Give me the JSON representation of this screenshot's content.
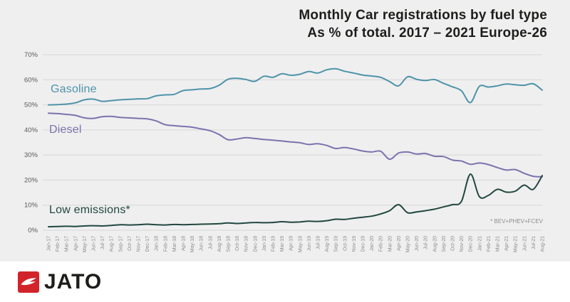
{
  "title": {
    "line1": "Monthly Car registrations by fuel type",
    "line2": "As % of total. 2017 – 2021 Europe-26"
  },
  "footnote": "* BEV+PHEV+FCEV",
  "brand": {
    "name": "JATO",
    "icon": "jato-arrow-icon",
    "red": "#d2232a",
    "text_color": "#1d1d1b"
  },
  "colors": {
    "background": "#efefef",
    "gridline": "#d7d7d7",
    "gasoline": "#4e93a9",
    "diesel": "#7a73ad",
    "low_emissions": "#20473e",
    "axis_text": "#8c8c8c"
  },
  "chart_data": {
    "type": "line",
    "title": "Monthly Car registrations by fuel type As % of total. 2017 – 2021 Europe-26",
    "grid": "horizontal",
    "ylim": [
      0,
      70
    ],
    "ytick_step": 10,
    "ytick_suffix": "%",
    "legend_position": "inline-labels",
    "x": [
      "Jan-17",
      "Feb-17",
      "Mar-17",
      "Apr-17",
      "May-17",
      "Jun-17",
      "Jul-17",
      "Aug-17",
      "Sep-17",
      "Oct-17",
      "Nov-17",
      "Dec-17",
      "Jan-18",
      "Feb-18",
      "Mar-18",
      "Apr-18",
      "May-18",
      "Jun-18",
      "Jul-18",
      "Aug-18",
      "Sep-18",
      "Oct-18",
      "Nov-18",
      "Dec-18",
      "Jan-19",
      "Feb-19",
      "Mar-19",
      "Apr-19",
      "May-19",
      "Jun-19",
      "Jul-19",
      "Aug-19",
      "Sep-19",
      "Oct-19",
      "Nov-19",
      "Dec-19",
      "Jan-20",
      "Feb-20",
      "Mar-20",
      "Apr-20",
      "May-20",
      "Jun-20",
      "Jul-20",
      "Aug-20",
      "Sep-20",
      "Oct-20",
      "Nov-20",
      "Dec-20",
      "Jan-21",
      "Feb-21",
      "Mar-21",
      "Apr-21",
      "May-21",
      "Jun-21",
      "Jul-21",
      "Aug-21"
    ],
    "series": [
      {
        "name": "Gasoline",
        "color": "#4e93a9",
        "values": [
          50.0,
          50.1,
          50.3,
          50.8,
          52.0,
          52.3,
          51.4,
          51.7,
          52.0,
          52.2,
          52.4,
          52.5,
          53.6,
          54.0,
          54.2,
          55.7,
          56.0,
          56.3,
          56.5,
          57.8,
          60.2,
          60.6,
          60.1,
          59.4,
          61.4,
          61.0,
          62.4,
          61.8,
          62.2,
          63.3,
          62.7,
          64.0,
          64.4,
          63.4,
          62.7,
          61.9,
          61.5,
          61.0,
          59.3,
          57.6,
          61.2,
          60.2,
          59.7,
          60.1,
          58.6,
          57.2,
          55.6,
          50.9,
          57.4,
          57.1,
          57.6,
          58.3,
          58.0,
          57.8,
          58.4,
          55.9
        ]
      },
      {
        "name": "Diesel",
        "color": "#7a73ad",
        "values": [
          46.7,
          46.5,
          46.2,
          45.8,
          44.8,
          44.6,
          45.3,
          45.4,
          45.0,
          44.8,
          44.6,
          44.4,
          43.6,
          42.1,
          41.7,
          41.4,
          41.1,
          40.4,
          39.7,
          38.2,
          36.1,
          36.4,
          36.9,
          36.6,
          36.2,
          35.9,
          35.6,
          35.2,
          34.9,
          34.2,
          34.5,
          33.8,
          32.6,
          33.0,
          32.4,
          31.6,
          31.2,
          31.5,
          28.3,
          30.8,
          31.2,
          30.4,
          30.6,
          29.5,
          29.4,
          28.0,
          27.6,
          26.3,
          26.8,
          26.2,
          25.0,
          24.0,
          24.2,
          22.7,
          21.5,
          21.3
        ]
      },
      {
        "name": "Low emissions*",
        "color": "#20473e",
        "values": [
          1.4,
          1.5,
          1.6,
          1.5,
          1.7,
          1.8,
          1.7,
          1.9,
          2.2,
          2.1,
          2.2,
          2.4,
          2.2,
          2.1,
          2.3,
          2.2,
          2.3,
          2.4,
          2.5,
          2.6,
          2.9,
          2.7,
          2.9,
          3.1,
          3.0,
          3.1,
          3.4,
          3.2,
          3.3,
          3.6,
          3.5,
          3.8,
          4.4,
          4.3,
          4.8,
          5.2,
          5.6,
          6.5,
          7.8,
          10.2,
          7.0,
          7.3,
          7.8,
          8.4,
          9.3,
          10.2,
          11.5,
          22.4,
          13.4,
          13.9,
          16.3,
          15.2,
          15.6,
          18.0,
          16.3,
          21.8
        ]
      }
    ]
  }
}
